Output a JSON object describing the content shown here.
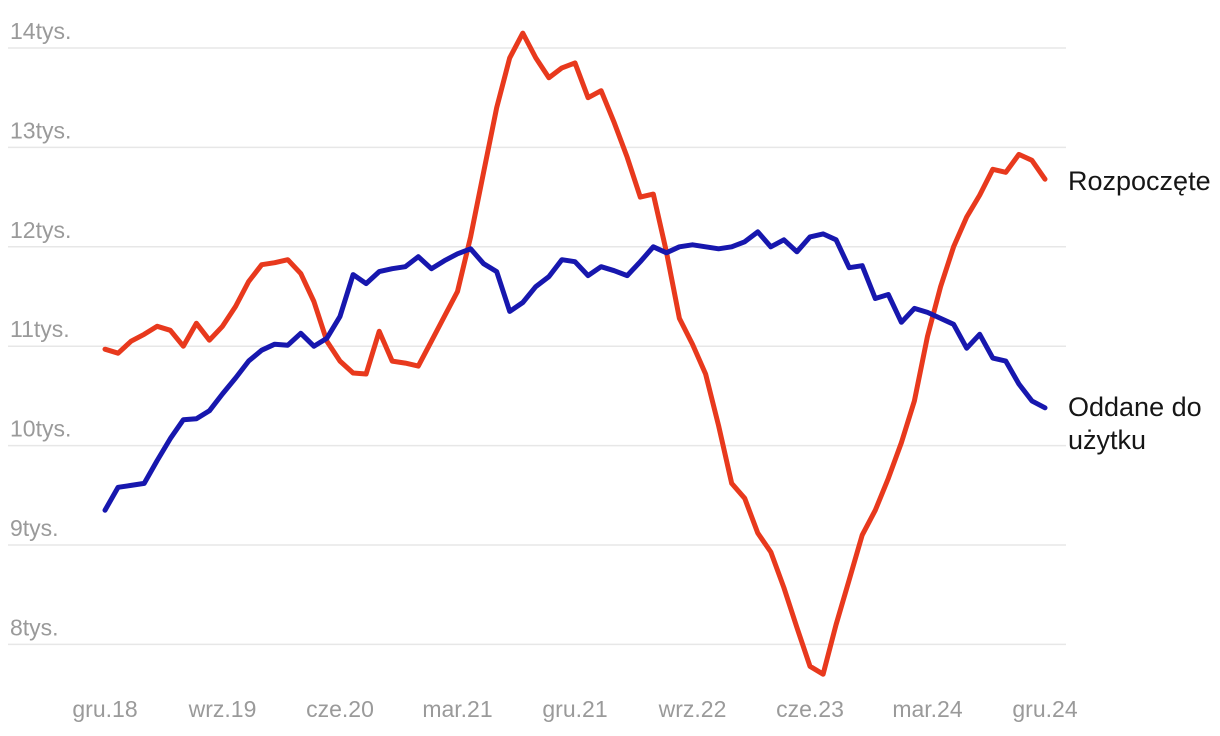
{
  "chart_data": {
    "type": "line",
    "title": "",
    "xlabel": "",
    "ylabel": "",
    "unit_suffix": "tys.",
    "grid": true,
    "legend_position": "right-of-line-ends",
    "x_tick_labels": [
      "gru.18",
      "wrz.19",
      "cze.20",
      "mar.21",
      "gru.21",
      "wrz.22",
      "cze.23",
      "mar.24",
      "gru.24"
    ],
    "x_tick_indices": [
      0,
      9,
      18,
      27,
      36,
      45,
      54,
      63,
      72
    ],
    "y_tick_labels": [
      "14tys.",
      "13tys.",
      "12tys.",
      "11tys.",
      "10tys.",
      "9tys.",
      "8tys."
    ],
    "y_tick_values": [
      14,
      13,
      12,
      11,
      10,
      9,
      8
    ],
    "y_axis": {
      "visible_min": 8,
      "visible_max": 14,
      "units": "thousands"
    },
    "point_count": 73,
    "series": [
      {
        "name": "Rozpoczęte",
        "color": "#E8391D",
        "values": [
          10.97,
          10.93,
          11.05,
          11.12,
          11.2,
          11.16,
          11.0,
          11.23,
          11.06,
          11.2,
          11.4,
          11.65,
          11.82,
          11.84,
          11.87,
          11.73,
          11.45,
          11.05,
          10.85,
          10.73,
          10.72,
          11.15,
          10.85,
          10.83,
          10.8,
          11.05,
          11.3,
          11.55,
          12.1,
          12.75,
          13.4,
          13.9,
          14.15,
          13.9,
          13.7,
          13.8,
          13.85,
          13.5,
          13.57,
          13.25,
          12.9,
          12.5,
          12.53,
          11.95,
          11.28,
          11.02,
          10.72,
          10.2,
          9.62,
          9.47,
          9.12,
          8.93,
          8.57,
          8.17,
          7.78,
          7.7,
          8.2,
          8.65,
          9.1,
          9.35,
          9.67,
          10.03,
          10.45,
          11.1,
          11.6,
          12.0,
          12.3,
          12.52,
          12.78,
          12.75,
          12.93,
          12.87,
          12.68
        ]
      },
      {
        "name": "Oddane do użytku",
        "color": "#1717AE",
        "values": [
          9.35,
          9.58,
          9.6,
          9.62,
          9.85,
          10.07,
          10.26,
          10.27,
          10.35,
          10.52,
          10.68,
          10.85,
          10.96,
          11.02,
          11.01,
          11.13,
          11.0,
          11.08,
          11.3,
          11.72,
          11.63,
          11.75,
          11.78,
          11.8,
          11.9,
          11.78,
          11.86,
          11.93,
          11.98,
          11.83,
          11.75,
          11.35,
          11.44,
          11.6,
          11.7,
          11.87,
          11.85,
          11.71,
          11.8,
          11.76,
          11.71,
          11.85,
          12.0,
          11.94,
          12.0,
          12.02,
          12.0,
          11.98,
          12.0,
          12.05,
          12.15,
          12.0,
          12.07,
          11.95,
          12.1,
          12.13,
          12.07,
          11.79,
          11.81,
          11.48,
          11.52,
          11.24,
          11.38,
          11.34,
          11.28,
          11.22,
          10.98,
          11.12,
          10.88,
          10.85,
          10.62,
          10.45,
          10.38
        ]
      }
    ]
  },
  "legend": {
    "started_label": "Rozpoczęte",
    "completed_label": "Oddane do użytku"
  },
  "colors": {
    "background": "#FFFFFF",
    "grid": "#E7E7E7",
    "axis_text": "#9A9A9A",
    "legend_text": "#161616",
    "series_started": "#E8391D",
    "series_completed": "#1717AE"
  }
}
